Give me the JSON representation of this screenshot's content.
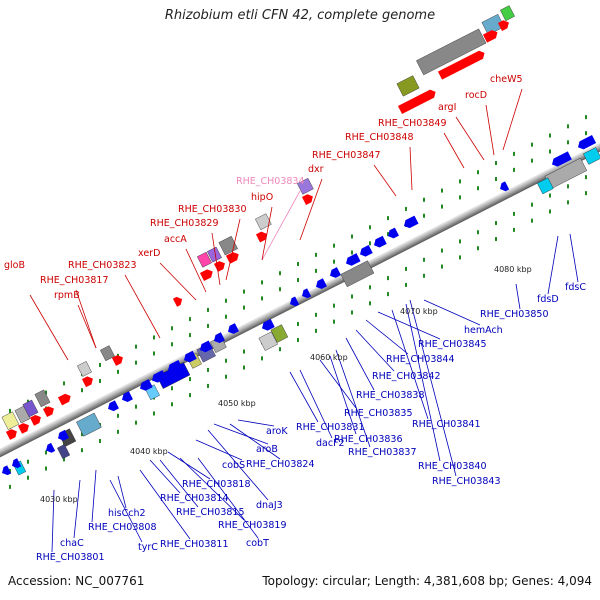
{
  "title": "Rhizobium etli CFN 42, complete genome",
  "accession": "Accession: NC_007761",
  "summary": "Topology: circular; Length: 4,381,608 bp; Genes: 4,094",
  "colors": {
    "label_top": "#cc0000",
    "label_top_pale": "#ee88bb",
    "label_bottom": "#0000bb",
    "backbone_dark": "#888888",
    "backbone_light": "#dddddd",
    "forward_gene": "#ff0000",
    "reverse_gene": "#0000ee",
    "tick_green": "#228822"
  },
  "ticks": [
    {
      "label": "4030 kbp"
    },
    {
      "label": "4040 kbp"
    },
    {
      "label": "4050 kbp"
    },
    {
      "label": "4060 kbp"
    },
    {
      "label": "4070 kbp"
    },
    {
      "label": "4080 kbp"
    }
  ],
  "top_labels": [
    {
      "text": "gloB"
    },
    {
      "text": "RHE_CH03817"
    },
    {
      "text": "rpmB"
    },
    {
      "text": "RHE_CH03823"
    },
    {
      "text": "xerD"
    },
    {
      "text": "accA"
    },
    {
      "text": "RHE_CH03829"
    },
    {
      "text": "RHE_CH03830"
    },
    {
      "text": "RHE_CH03834"
    },
    {
      "text": "hipO"
    },
    {
      "text": "dxr"
    },
    {
      "text": "RHE_CH03847"
    },
    {
      "text": "RHE_CH03848"
    },
    {
      "text": "RHE_CH03849"
    },
    {
      "text": "argI"
    },
    {
      "text": "rocD"
    },
    {
      "text": "cheW5"
    }
  ],
  "bottom_labels": [
    {
      "text": "RHE_CH03801"
    },
    {
      "text": "chaC"
    },
    {
      "text": "RHE_CH03808"
    },
    {
      "text": "tyrC"
    },
    {
      "text": "hisCch2"
    },
    {
      "text": "RHE_CH03811"
    },
    {
      "text": "RHE_CH03814"
    },
    {
      "text": "RHE_CH03815"
    },
    {
      "text": "RHE_CH03818"
    },
    {
      "text": "RHE_CH03819"
    },
    {
      "text": "cobT"
    },
    {
      "text": "cobS"
    },
    {
      "text": "dnaJ3"
    },
    {
      "text": "aroB"
    },
    {
      "text": "RHE_CH03824"
    },
    {
      "text": "aroK"
    },
    {
      "text": "RHE_CH03831"
    },
    {
      "text": "dacF2"
    },
    {
      "text": "RHE_CH03835"
    },
    {
      "text": "RHE_CH03836"
    },
    {
      "text": "RHE_CH03837"
    },
    {
      "text": "RHE_CH03838"
    },
    {
      "text": "RHE_CH03842"
    },
    {
      "text": "RHE_CH03844"
    },
    {
      "text": "RHE_CH03845"
    },
    {
      "text": "RHE_CH03841"
    },
    {
      "text": "RHE_CH03840"
    },
    {
      "text": "RHE_CH03843"
    },
    {
      "text": "hemAch"
    },
    {
      "text": "RHE_CH03850"
    },
    {
      "text": "fdsD"
    },
    {
      "text": "fdsC"
    }
  ]
}
